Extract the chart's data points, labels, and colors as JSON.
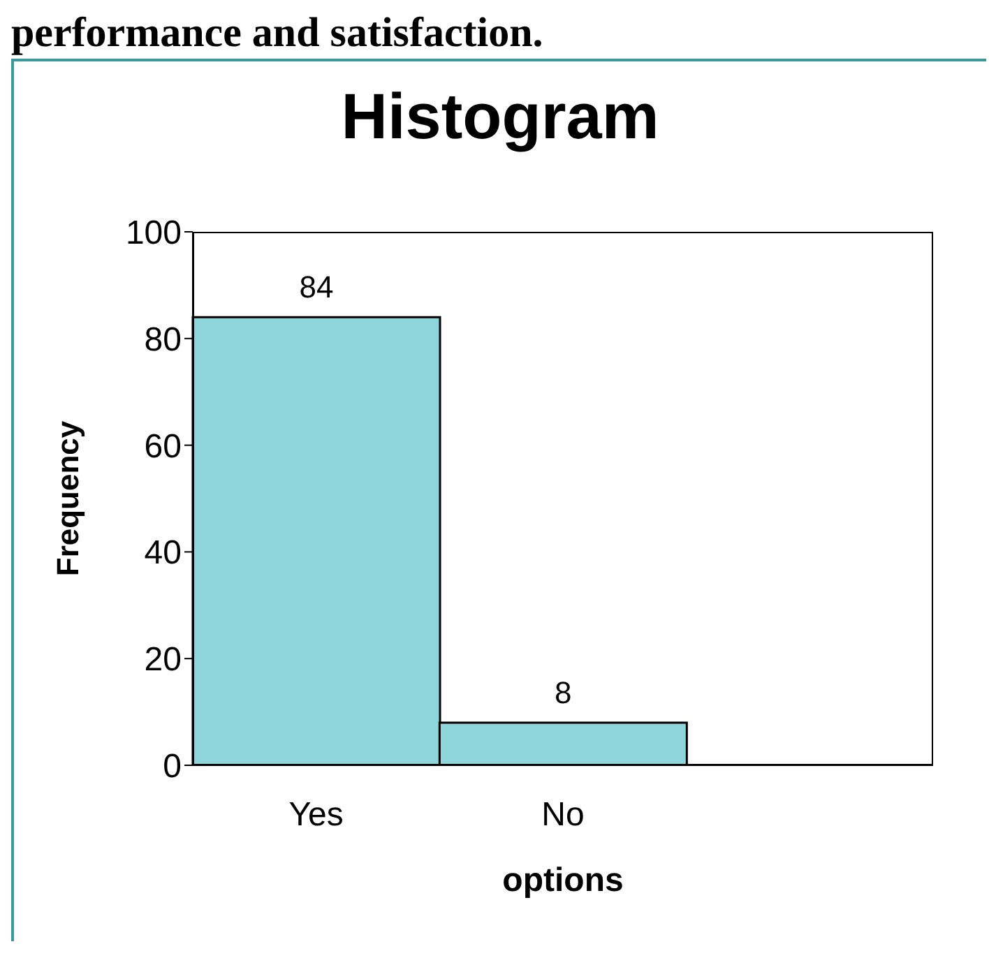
{
  "chart_data": {
    "type": "bar",
    "title": "Histogram",
    "annotations": [
      "performance and satisfaction."
    ],
    "categories": [
      "Yes",
      "No",
      null
    ],
    "values": [
      84,
      8,
      null
    ],
    "color": "#8fd6dc",
    "xlabel": "options",
    "ylabel": "Frequency",
    "ylim": [
      0,
      100
    ],
    "yticks": [
      0,
      20,
      40,
      60,
      80,
      100
    ],
    "data_labels": true,
    "grid": false,
    "legend": false
  }
}
